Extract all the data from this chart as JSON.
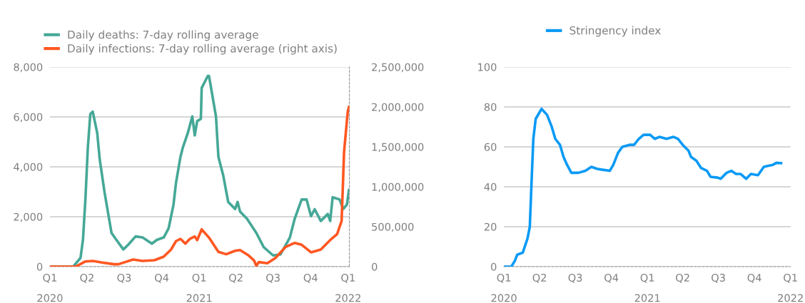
{
  "chart_data": [
    {
      "type": "line",
      "legend": "top left",
      "grid": "y",
      "line_style": "solid",
      "xlim": [
        "2020-01-01",
        "2022-01-04"
      ],
      "xticks": [
        {
          "value": "2020-01-01",
          "label": "Q1\n2020"
        },
        {
          "value": "2020-04-01",
          "label": "Q2"
        },
        {
          "value": "2020-07-01",
          "label": "Q3"
        },
        {
          "value": "2020-10-01",
          "label": "Q4"
        },
        {
          "value": "2021-01-01",
          "label": "Q1\n2021"
        },
        {
          "value": "2021-04-01",
          "label": "Q2"
        },
        {
          "value": "2021-07-01",
          "label": "Q3"
        },
        {
          "value": "2021-10-01",
          "label": "Q4"
        },
        {
          "value": "2022-01-01",
          "label": "Q1\n2022"
        }
      ],
      "ylim": [
        0,
        8000
      ],
      "yticks": [
        {
          "value": 0,
          "label": "0"
        },
        {
          "value": 2000,
          "label": "2,000"
        },
        {
          "value": 4000,
          "label": "4,000"
        },
        {
          "value": 6000,
          "label": "6,000"
        },
        {
          "value": 8000,
          "label": "8,000"
        }
      ],
      "y2lim": [
        0,
        2500000
      ],
      "y2ticks": [
        {
          "value": 0,
          "label": "0"
        },
        {
          "value": 500000,
          "label": "500,000"
        },
        {
          "value": 1000000,
          "label": "1,000,000"
        },
        {
          "value": 1500000,
          "label": "1,500,000"
        },
        {
          "value": 2000000,
          "label": "2,000,000"
        },
        {
          "value": 2500000,
          "label": "2,500,000"
        }
      ],
      "series": [
        {
          "name": "Daily deaths: 7-day rolling average",
          "color": "#45a897",
          "x": [
            "2020-01-01",
            "2020-02-27",
            "2020-03-16",
            "2020-03-22",
            "2020-03-28",
            "2020-04-03",
            "2020-04-09",
            "2020-04-15",
            "2020-04-26",
            "2020-05-02",
            "2020-05-14",
            "2020-05-25",
            "2020-05-31",
            "2020-06-12",
            "2020-06-29",
            "2020-07-11",
            "2020-07-29",
            "2020-08-15",
            "2020-09-07",
            "2020-09-19",
            "2020-10-06",
            "2020-10-18",
            "2020-10-30",
            "2020-11-05",
            "2020-11-16",
            "2020-11-22",
            "2020-12-04",
            "2020-12-15",
            "2020-12-21",
            "2020-12-27",
            "2021-01-05",
            "2021-01-07",
            "2021-01-22",
            "2021-01-25",
            "2021-02-11",
            "2021-02-17",
            "2021-03-01",
            "2021-03-13",
            "2021-03-30",
            "2021-04-05",
            "2021-04-11",
            "2021-04-28",
            "2021-05-21",
            "2021-06-08",
            "2021-07-01",
            "2021-07-19",
            "2021-08-11",
            "2021-08-23",
            "2021-09-09",
            "2021-09-21",
            "2021-10-02",
            "2021-10-11",
            "2021-10-26",
            "2021-11-12",
            "2021-11-18",
            "2021-11-24",
            "2021-12-11",
            "2021-12-20",
            "2021-12-29",
            "2022-01-03"
          ],
          "values": [
            0,
            0,
            350,
            1070,
            2690,
            4780,
            6110,
            6210,
            5350,
            4310,
            2970,
            1920,
            1350,
            1070,
            690,
            880,
            1210,
            1170,
            920,
            1070,
            1170,
            1540,
            2490,
            3350,
            4400,
            4780,
            5350,
            6020,
            5260,
            5830,
            5920,
            7160,
            7640,
            7640,
            6020,
            4400,
            3640,
            2590,
            2310,
            2590,
            2210,
            1920,
            1350,
            780,
            450,
            490,
            1160,
            1920,
            2690,
            2690,
            2020,
            2300,
            1830,
            2110,
            1830,
            2780,
            2690,
            2310,
            2490,
            3070
          ]
        },
        {
          "name": "Daily infections: 7-day rolling average (right axis)",
          "color": "#ff5722",
          "axis": "y2",
          "x": [
            "2020-01-01",
            "2020-03-04",
            "2020-03-28",
            "2020-04-15",
            "2020-05-08",
            "2020-06-06",
            "2020-06-17",
            "2020-07-23",
            "2020-08-15",
            "2020-09-13",
            "2020-10-06",
            "2020-10-24",
            "2020-11-05",
            "2020-11-16",
            "2020-11-28",
            "2020-12-09",
            "2020-12-21",
            "2020-12-27",
            "2021-01-07",
            "2021-01-25",
            "2021-02-17",
            "2021-03-08",
            "2021-03-30",
            "2021-04-11",
            "2021-05-02",
            "2021-05-15",
            "2021-05-21",
            "2021-05-27",
            "2021-06-17",
            "2021-07-07",
            "2021-07-31",
            "2021-08-23",
            "2021-09-09",
            "2021-10-02",
            "2021-10-26",
            "2021-11-18",
            "2021-12-05",
            "2021-12-16",
            "2021-12-22",
            "2021-12-31",
            "2022-01-03"
          ],
          "values": [
            0,
            0,
            65000,
            71000,
            51000,
            30000,
            30000,
            89000,
            71000,
            80000,
            125000,
            214000,
            319000,
            348000,
            288000,
            348000,
            378000,
            333000,
            467000,
            363000,
            185000,
            155000,
            199000,
            208000,
            140000,
            80000,
            12000,
            57000,
            42000,
            110000,
            244000,
            297000,
            274000,
            179000,
            214000,
            333000,
            408000,
            571000,
            1435000,
            1940000,
            2000000
          ]
        }
      ]
    },
    {
      "type": "line",
      "legend": "top",
      "grid": "y",
      "line_style": "solid",
      "xlim": [
        "2020-01-01",
        "2022-01-01"
      ],
      "xticks": [
        {
          "value": "2020-01-01",
          "label": "Q1\n2020"
        },
        {
          "value": "2020-04-01",
          "label": "Q2"
        },
        {
          "value": "2020-07-01",
          "label": "Q3"
        },
        {
          "value": "2020-10-01",
          "label": "Q4"
        },
        {
          "value": "2021-01-01",
          "label": "Q1\n2021"
        },
        {
          "value": "2021-04-01",
          "label": "Q2"
        },
        {
          "value": "2021-07-01",
          "label": "Q3"
        },
        {
          "value": "2021-10-01",
          "label": "Q4"
        },
        {
          "value": "2022-01-01",
          "label": "Q1\n2022"
        }
      ],
      "ylim": [
        0,
        100
      ],
      "yticks": [
        0,
        20,
        40,
        60,
        80,
        100
      ],
      "series": [
        {
          "name": "Stringency index",
          "color": "#0a9af5",
          "x": [
            "2020-01-01",
            "2020-01-20",
            "2020-01-29",
            "2020-02-04",
            "2020-02-18",
            "2020-03-01",
            "2020-03-07",
            "2020-03-12",
            "2020-03-16",
            "2020-03-22",
            "2020-04-06",
            "2020-04-20",
            "2020-05-02",
            "2020-05-11",
            "2020-05-23",
            "2020-06-01",
            "2020-06-10",
            "2020-06-21",
            "2020-07-09",
            "2020-07-27",
            "2020-08-11",
            "2020-08-25",
            "2020-09-06",
            "2020-09-27",
            "2020-10-06",
            "2020-10-18",
            "2020-10-29",
            "2020-11-16",
            "2020-11-28",
            "2020-12-10",
            "2020-12-22",
            "2021-01-08",
            "2021-01-20",
            "2021-02-01",
            "2021-02-19",
            "2021-03-08",
            "2021-03-20",
            "2021-04-01",
            "2021-04-16",
            "2021-04-22",
            "2021-05-06",
            "2021-05-18",
            "2021-06-02",
            "2021-06-11",
            "2021-06-29",
            "2021-07-07",
            "2021-07-22",
            "2021-08-03",
            "2021-08-15",
            "2021-08-27",
            "2021-09-10",
            "2021-09-22",
            "2021-10-10",
            "2021-10-25",
            "2021-11-08",
            "2021-11-17",
            "2021-11-26",
            "2021-12-08"
          ],
          "values": [
            0,
            0,
            3,
            6,
            7,
            14,
            20,
            45,
            64,
            74,
            79,
            76,
            70,
            64,
            61,
            55,
            51,
            47,
            47,
            48,
            50,
            49,
            48.6,
            48,
            51,
            57,
            60,
            61,
            61,
            64,
            66,
            66,
            64,
            65,
            64,
            65,
            64,
            61,
            58,
            55,
            53,
            49.4,
            48,
            45,
            44.6,
            44,
            47,
            48,
            46.4,
            46.4,
            44,
            46.4,
            45.8,
            50,
            50.6,
            51,
            52,
            51.8
          ]
        }
      ]
    }
  ]
}
